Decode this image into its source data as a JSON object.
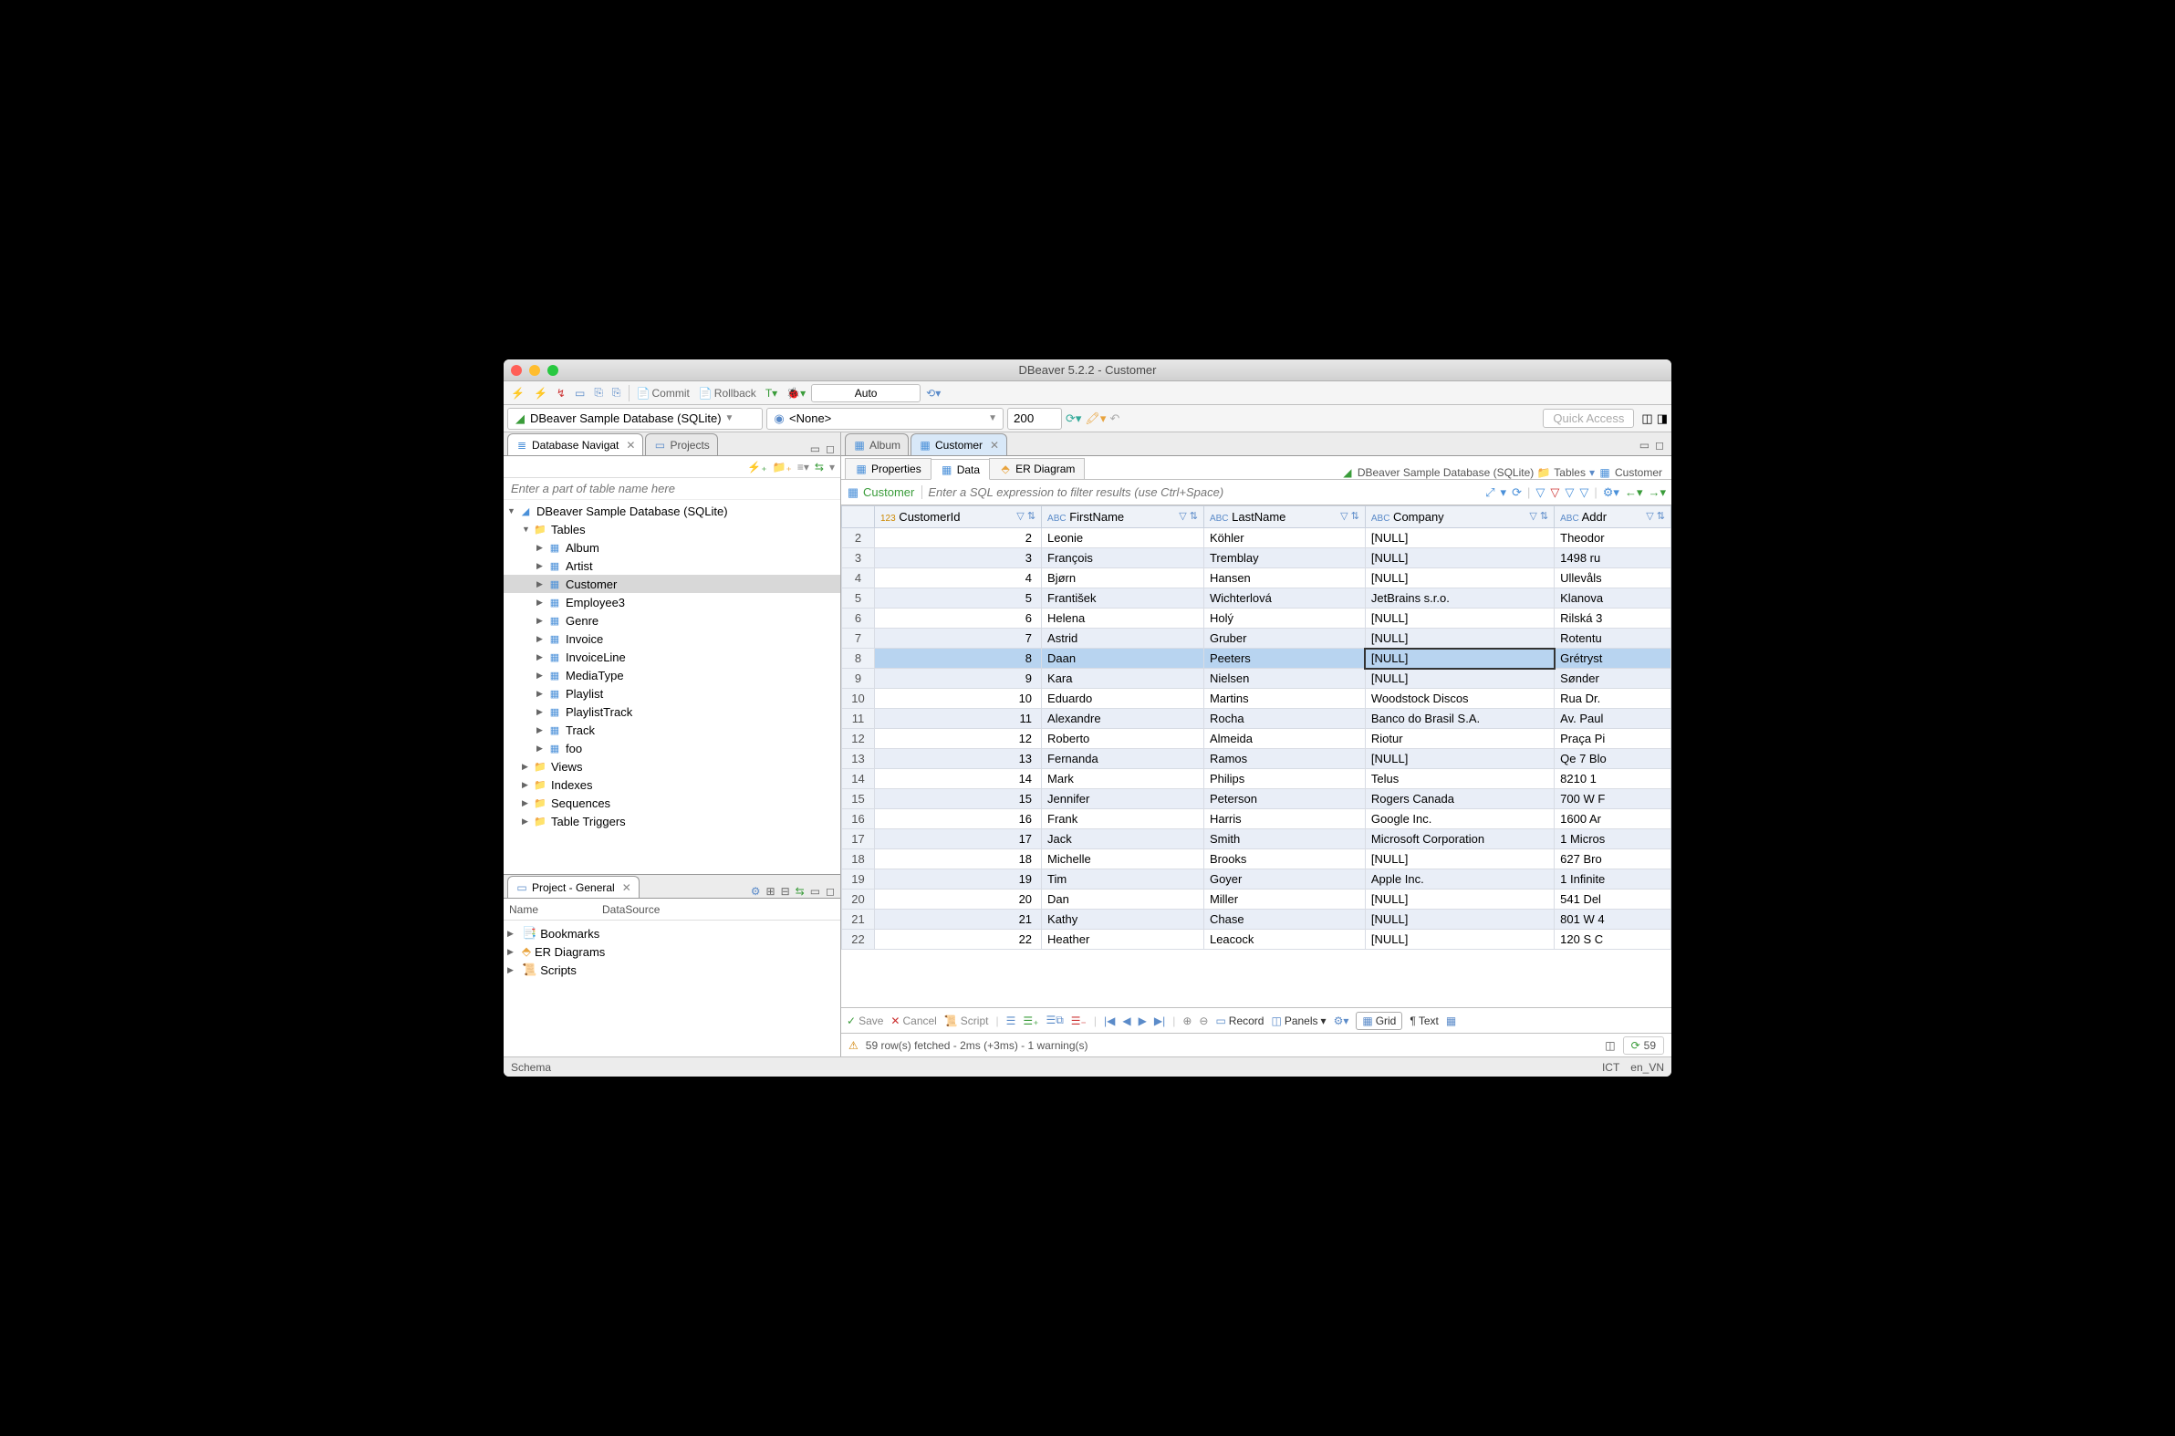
{
  "window": {
    "title": "DBeaver 5.2.2 - Customer"
  },
  "toolbar": {
    "commit": "Commit",
    "rollback": "Rollback",
    "auto": "Auto",
    "quick_access_placeholder": "Quick Access"
  },
  "connbar": {
    "database": "DBeaver Sample Database (SQLite)",
    "schema": "<None>",
    "limit": "200"
  },
  "left_tabs": {
    "nav": "Database Navigat",
    "projects": "Projects"
  },
  "nav_filter_placeholder": "Enter a part of table name here",
  "tree": {
    "root": "DBeaver Sample Database (SQLite)",
    "tables_label": "Tables",
    "tables": [
      "Album",
      "Artist",
      "Customer",
      "Employee3",
      "Genre",
      "Invoice",
      "InvoiceLine",
      "MediaType",
      "Playlist",
      "PlaylistTrack",
      "Track",
      "foo"
    ],
    "selected": "Customer",
    "other": [
      "Views",
      "Indexes",
      "Sequences",
      "Table Triggers"
    ]
  },
  "project_panel": {
    "title": "Project - General",
    "col_name": "Name",
    "col_ds": "DataSource",
    "items": [
      "Bookmarks",
      "ER Diagrams",
      "Scripts"
    ]
  },
  "editor_tabs": {
    "album": "Album",
    "customer": "Customer"
  },
  "subtabs": {
    "properties": "Properties",
    "data": "Data",
    "er": "ER Diagram"
  },
  "crumbs": {
    "db": "DBeaver Sample Database (SQLite)",
    "tables": "Tables",
    "table": "Customer"
  },
  "filter": {
    "table": "Customer",
    "placeholder": "Enter a SQL expression to filter results (use Ctrl+Space)"
  },
  "columns": [
    "CustomerId",
    "FirstName",
    "LastName",
    "Company",
    "Addr"
  ],
  "col_types": [
    "123",
    "ABC",
    "ABC",
    "ABC",
    "ABC"
  ],
  "rows": [
    {
      "n": 2,
      "id": 2,
      "fn": "Leonie",
      "ln": "Köhler",
      "co": "[NULL]",
      "ad": "Theodor"
    },
    {
      "n": 3,
      "id": 3,
      "fn": "François",
      "ln": "Tremblay",
      "co": "[NULL]",
      "ad": "1498 ru"
    },
    {
      "n": 4,
      "id": 4,
      "fn": "Bjørn",
      "ln": "Hansen",
      "co": "[NULL]",
      "ad": "Ullevåls"
    },
    {
      "n": 5,
      "id": 5,
      "fn": "František",
      "ln": "Wichterlová",
      "co": "JetBrains s.r.o.",
      "ad": "Klanova"
    },
    {
      "n": 6,
      "id": 6,
      "fn": "Helena",
      "ln": "Holý",
      "co": "[NULL]",
      "ad": "Rilská 3"
    },
    {
      "n": 7,
      "id": 7,
      "fn": "Astrid",
      "ln": "Gruber",
      "co": "[NULL]",
      "ad": "Rotentu"
    },
    {
      "n": 8,
      "id": 8,
      "fn": "Daan",
      "ln": "Peeters",
      "co": "[NULL]",
      "ad": "Grétryst",
      "hl": true,
      "sel": "co"
    },
    {
      "n": 9,
      "id": 9,
      "fn": "Kara",
      "ln": "Nielsen",
      "co": "[NULL]",
      "ad": "Sønder"
    },
    {
      "n": 10,
      "id": 10,
      "fn": "Eduardo",
      "ln": "Martins",
      "co": "Woodstock Discos",
      "ad": "Rua Dr."
    },
    {
      "n": 11,
      "id": 11,
      "fn": "Alexandre",
      "ln": "Rocha",
      "co": "Banco do Brasil S.A.",
      "ad": "Av. Paul"
    },
    {
      "n": 12,
      "id": 12,
      "fn": "Roberto",
      "ln": "Almeida",
      "co": "Riotur",
      "ad": "Praça Pi"
    },
    {
      "n": 13,
      "id": 13,
      "fn": "Fernanda",
      "ln": "Ramos",
      "co": "[NULL]",
      "ad": "Qe 7 Blo"
    },
    {
      "n": 14,
      "id": 14,
      "fn": "Mark",
      "ln": "Philips",
      "co": "Telus",
      "ad": "8210 1"
    },
    {
      "n": 15,
      "id": 15,
      "fn": "Jennifer",
      "ln": "Peterson",
      "co": "Rogers Canada",
      "ad": "700 W F"
    },
    {
      "n": 16,
      "id": 16,
      "fn": "Frank",
      "ln": "Harris",
      "co": "Google Inc.",
      "ad": "1600 Ar"
    },
    {
      "n": 17,
      "id": 17,
      "fn": "Jack",
      "ln": "Smith",
      "co": "Microsoft Corporation",
      "ad": "1 Micros"
    },
    {
      "n": 18,
      "id": 18,
      "fn": "Michelle",
      "ln": "Brooks",
      "co": "[NULL]",
      "ad": "627 Bro"
    },
    {
      "n": 19,
      "id": 19,
      "fn": "Tim",
      "ln": "Goyer",
      "co": "Apple Inc.",
      "ad": "1 Infinite"
    },
    {
      "n": 20,
      "id": 20,
      "fn": "Dan",
      "ln": "Miller",
      "co": "[NULL]",
      "ad": "541 Del"
    },
    {
      "n": 21,
      "id": 21,
      "fn": "Kathy",
      "ln": "Chase",
      "co": "[NULL]",
      "ad": "801 W 4"
    },
    {
      "n": 22,
      "id": 22,
      "fn": "Heather",
      "ln": "Leacock",
      "co": "[NULL]",
      "ad": "120 S C"
    }
  ],
  "bottombar": {
    "save": "Save",
    "cancel": "Cancel",
    "script": "Script",
    "record": "Record",
    "panels": "Panels",
    "grid": "Grid",
    "text": "Text"
  },
  "status": {
    "msg": "59 row(s) fetched - 2ms (+3ms) - 1 warning(s)",
    "count": "59"
  },
  "appstatus": {
    "left": "Schema",
    "tz": "ICT",
    "locale": "en_VN"
  },
  "colors": {
    "accent": "#4a90d9",
    "folder": "#e8a33d",
    "header_bg": "#eef2f8",
    "row_alt": "#e9eef7",
    "highlight": "#b8d4f0"
  }
}
